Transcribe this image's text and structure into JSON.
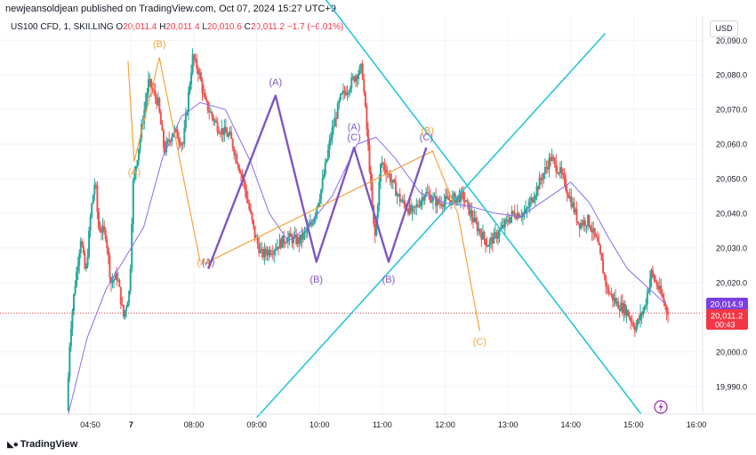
{
  "header": {
    "publisher": "newjeansoldjean published on TradingView.com, Oct 07, 2024 15:27 UTC+9"
  },
  "legend": {
    "symbol": "US100 CFD, 1, SKILLING",
    "o_label": "O",
    "o_value": "20,011.4",
    "h_label": "H",
    "h_value": "20,011.4",
    "l_label": "L",
    "l_value": "20,010.6",
    "c_label": "C",
    "c_value": "20,011.2",
    "change": "−1.7 (−0.01%)"
  },
  "currency_button": "USD",
  "price_tags": {
    "ma_value": "20,014.9",
    "last_price": "20,011.2",
    "countdown": "00:43"
  },
  "footer": {
    "brand": "TradingView"
  },
  "colors": {
    "up": "#26a69a",
    "down": "#ef5350",
    "ma": "#8c6cf0",
    "purple_wave": "#7e57c2",
    "orange_wave": "#f7a23b",
    "channel": "#26c6da",
    "last_price": "#f23645",
    "ma_tag": "#7b3fe4"
  },
  "chart_data": {
    "type": "candlestick",
    "y_axis": {
      "min": 19982,
      "max": 20097,
      "ticks": [
        19990,
        20000,
        20010,
        20020,
        20030,
        20040,
        20050,
        20060,
        20070,
        20080,
        20090
      ],
      "tick_labels": [
        "19,990.0",
        "20,000.0",
        "20,010.0",
        "20,020.0",
        "20,030.0",
        "20,040.0",
        "20,050.0",
        "20,060.0",
        "20,070.0",
        "20,080.0",
        "20,090.0"
      ]
    },
    "x_axis": {
      "labels": [
        {
          "label": "04:50",
          "t": 0.35
        },
        {
          "label": "7",
          "t": 1.0
        },
        {
          "label": "08:00",
          "t": 2.0
        },
        {
          "label": "09:00",
          "t": 3.0
        },
        {
          "label": "10:00",
          "t": 4.0
        },
        {
          "label": "11:00",
          "t": 5.0
        },
        {
          "label": "12:00",
          "t": 6.0
        },
        {
          "label": "13:00",
          "t": 7.0
        },
        {
          "label": "14:00",
          "t": 8.0
        },
        {
          "label": "15:00",
          "t": 9.0
        },
        {
          "label": "16:00",
          "t": 10.0
        }
      ]
    },
    "price_path": [
      [
        0.0,
        19983
      ],
      [
        0.05,
        20005
      ],
      [
        0.12,
        20018
      ],
      [
        0.22,
        20033
      ],
      [
        0.3,
        20022
      ],
      [
        0.38,
        20040
      ],
      [
        0.45,
        20050
      ],
      [
        0.5,
        20036
      ],
      [
        0.62,
        20034
      ],
      [
        0.7,
        20020
      ],
      [
        0.8,
        20022
      ],
      [
        0.9,
        20010
      ],
      [
        1.0,
        20018
      ],
      [
        1.05,
        20048
      ],
      [
        1.15,
        20060
      ],
      [
        1.3,
        20078
      ],
      [
        1.45,
        20072
      ],
      [
        1.55,
        20058
      ],
      [
        1.7,
        20064
      ],
      [
        1.85,
        20060
      ],
      [
        2.0,
        20085
      ],
      [
        2.1,
        20081
      ],
      [
        2.2,
        20072
      ],
      [
        2.4,
        20065
      ],
      [
        2.6,
        20062
      ],
      [
        2.8,
        20050
      ],
      [
        3.0,
        20033
      ],
      [
        3.1,
        20028
      ],
      [
        3.3,
        20030
      ],
      [
        3.5,
        20033
      ],
      [
        3.7,
        20032
      ],
      [
        3.9,
        20037
      ],
      [
        4.05,
        20047
      ],
      [
        4.2,
        20062
      ],
      [
        4.35,
        20073
      ],
      [
        4.5,
        20077
      ],
      [
        4.6,
        20080
      ],
      [
        4.7,
        20082
      ],
      [
        4.8,
        20058
      ],
      [
        4.9,
        20032
      ],
      [
        5.0,
        20055
      ],
      [
        5.1,
        20052
      ],
      [
        5.3,
        20044
      ],
      [
        5.5,
        20040
      ],
      [
        5.7,
        20046
      ],
      [
        5.9,
        20043
      ],
      [
        6.1,
        20044
      ],
      [
        6.3,
        20045
      ],
      [
        6.5,
        20037
      ],
      [
        6.7,
        20031
      ],
      [
        6.9,
        20035
      ],
      [
        7.1,
        20040
      ],
      [
        7.3,
        20040
      ],
      [
        7.5,
        20048
      ],
      [
        7.7,
        20056
      ],
      [
        7.85,
        20052
      ],
      [
        8.0,
        20045
      ],
      [
        8.15,
        20037
      ],
      [
        8.3,
        20038
      ],
      [
        8.45,
        20031
      ],
      [
        8.6,
        20018
      ],
      [
        8.75,
        20014
      ],
      [
        8.9,
        20012
      ],
      [
        9.05,
        20007
      ],
      [
        9.2,
        20013
      ],
      [
        9.3,
        20023
      ],
      [
        9.45,
        20017
      ],
      [
        9.55,
        20012
      ]
    ],
    "moving_average": [
      [
        0.0,
        19982
      ],
      [
        0.3,
        20004
      ],
      [
        0.6,
        20018
      ],
      [
        1.0,
        20030
      ],
      [
        1.2,
        20036
      ],
      [
        1.5,
        20056
      ],
      [
        1.8,
        20068
      ],
      [
        2.1,
        20072
      ],
      [
        2.5,
        20070
      ],
      [
        2.9,
        20055
      ],
      [
        3.2,
        20040
      ],
      [
        3.5,
        20032
      ],
      [
        3.8,
        20036
      ],
      [
        4.2,
        20045
      ],
      [
        4.6,
        20060
      ],
      [
        4.9,
        20062
      ],
      [
        5.2,
        20056
      ],
      [
        5.6,
        20046
      ],
      [
        6.0,
        20043
      ],
      [
        6.4,
        20042
      ],
      [
        6.8,
        20040
      ],
      [
        7.2,
        20039
      ],
      [
        7.6,
        20044
      ],
      [
        8.0,
        20049
      ],
      [
        8.3,
        20043
      ],
      [
        8.6,
        20033
      ],
      [
        8.9,
        20024
      ],
      [
        9.2,
        20019
      ],
      [
        9.5,
        20014
      ]
    ],
    "purple_wave": {
      "points": [
        [
          2.23,
          20024
        ],
        [
          3.3,
          20074
        ],
        [
          3.95,
          20026
        ],
        [
          4.55,
          20059
        ],
        [
          5.1,
          20026
        ],
        [
          5.7,
          20059
        ]
      ],
      "labels": [
        {
          "text": "(A)",
          "t": 2.23,
          "p": 20025
        },
        {
          "text": "(A)",
          "t": 3.3,
          "p": 20077
        },
        {
          "text": "(B)",
          "t": 3.95,
          "p": 20020
        },
        {
          "text": "(A)",
          "t": 4.55,
          "p": 20064
        },
        {
          "text": "(C)",
          "t": 4.55,
          "p": 20061
        },
        {
          "text": "(B)",
          "t": 5.1,
          "p": 20020
        },
        {
          "text": "(C)",
          "t": 5.7,
          "p": 20061
        }
      ]
    },
    "orange_wave_1": {
      "points": [
        [
          0.95,
          20084
        ],
        [
          1.05,
          20055
        ],
        [
          1.45,
          20085
        ],
        [
          2.1,
          20026
        ]
      ],
      "labels": [
        {
          "text": "(A)",
          "t": 1.05,
          "p": 20051
        },
        {
          "text": "(B)",
          "t": 1.45,
          "p": 20088
        },
        {
          "text": "(A)",
          "t": 2.15,
          "p": 20025
        }
      ]
    },
    "orange_wave_2": {
      "points": [
        [
          2.23,
          20026
        ],
        [
          5.8,
          20058
        ],
        [
          6.2,
          20040
        ],
        [
          6.55,
          20006
        ]
      ],
      "labels": [
        {
          "text": "(B)",
          "t": 5.72,
          "p": 20063
        },
        {
          "text": "(C)",
          "t": 6.55,
          "p": 20002
        }
      ]
    },
    "channel_lines": [
      {
        "from": [
          3.0,
          19981
        ],
        "to": [
          8.55,
          20092
        ]
      },
      {
        "from": [
          3.92,
          20106
        ],
        "to": [
          9.12,
          19982
        ]
      }
    ]
  }
}
